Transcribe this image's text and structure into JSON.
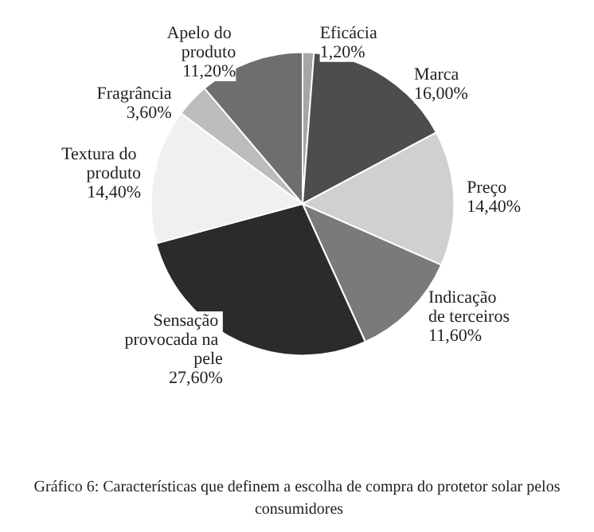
{
  "chart_data": {
    "type": "pie",
    "title": "Gráfico 6: Características que definem a escolha de compra do protetor solar pelos consumidores",
    "categories": [
      "Eficácia",
      "Marca",
      "Preço",
      "Indicação de terceiros",
      "Sensação provocada na pele",
      "Textura do produto",
      "Fragrância",
      "Apelo do produto"
    ],
    "values": [
      1.2,
      16.0,
      14.4,
      11.6,
      27.6,
      14.4,
      3.6,
      11.2
    ],
    "value_labels": [
      "1,20%",
      "16,00%",
      "14,40%",
      "11,60%",
      "27,60%",
      "14,40%",
      "3,60%",
      "11,20%"
    ],
    "colors": [
      "#a6a6a6",
      "#4d4d4d",
      "#d0d0d0",
      "#7a7a7a",
      "#2b2b2b",
      "#f0f0f0",
      "#bcbcbc",
      "#6e6e6e"
    ],
    "legend": false
  }
}
